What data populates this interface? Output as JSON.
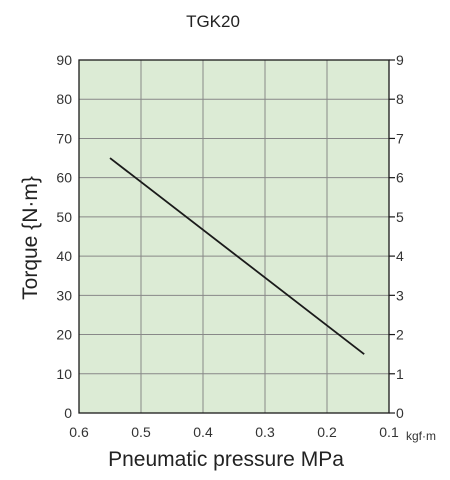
{
  "chart_data": {
    "type": "line",
    "title": "TGK20",
    "xlabel": "Pneumatic pressure MPa",
    "ylabel": "Torque {N·m}",
    "y2unit": "kgf·m",
    "xlim": [
      0.6,
      0.1
    ],
    "ylim": [
      0,
      90
    ],
    "y2lim": [
      0,
      9
    ],
    "x_ticks": [
      "0.6",
      "0.5",
      "0.4",
      "0.3",
      "0.2",
      "0.1"
    ],
    "y_ticks": [
      "0",
      "10",
      "20",
      "30",
      "40",
      "50",
      "60",
      "70",
      "80",
      "90"
    ],
    "y2_ticks": [
      "0",
      "1",
      "2",
      "3",
      "4",
      "5",
      "6",
      "7",
      "8",
      "9"
    ],
    "grid": true,
    "series": [
      {
        "x": [
          0.55,
          0.14
        ],
        "y": [
          65,
          15
        ]
      }
    ]
  },
  "colors": {
    "plot_background": "#dcebd5",
    "grid": "#888888",
    "line": "#1a1a1a"
  }
}
